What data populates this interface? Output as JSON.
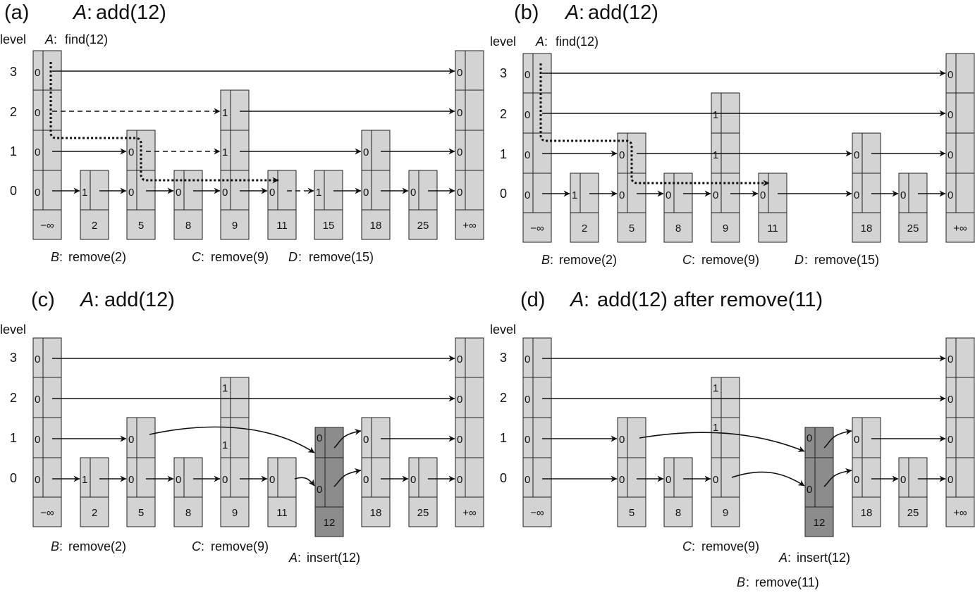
{
  "colors": {
    "node": "#d3d3d3",
    "inserted_node": "#8c8c8c",
    "stroke": "#222222"
  },
  "panels": [
    {
      "tag": "(a)",
      "title_op": "add(12)",
      "level_label": "level",
      "levels": [
        "0",
        "1",
        "2",
        "3"
      ],
      "find_label": "find(12)",
      "nodes": [
        {
          "key": "−∞",
          "height": 4,
          "marks": [
            "0",
            "0",
            "0",
            "0"
          ]
        },
        {
          "key": "2",
          "height": 1,
          "marks": [
            "1"
          ]
        },
        {
          "key": "5",
          "height": 2,
          "marks": [
            "0",
            "0"
          ]
        },
        {
          "key": "8",
          "height": 1,
          "marks": [
            "0"
          ]
        },
        {
          "key": "9",
          "height": 3,
          "marks": [
            "0",
            "1",
            "1"
          ]
        },
        {
          "key": "11",
          "height": 1,
          "marks": [
            "0"
          ]
        },
        {
          "key": "15",
          "height": 1,
          "marks": [
            "1"
          ]
        },
        {
          "key": "18",
          "height": 2,
          "marks": [
            "0",
            "0"
          ]
        },
        {
          "key": "25",
          "height": 1,
          "marks": [
            "0"
          ]
        },
        {
          "key": "+∞",
          "height": 4,
          "marks": [
            "0",
            "0",
            "0",
            "0"
          ]
        }
      ],
      "ops": [
        {
          "actor": "B",
          "text": "remove(2)"
        },
        {
          "actor": "C",
          "text": "remove(9)"
        },
        {
          "actor": "D",
          "text": "remove(15)"
        }
      ]
    },
    {
      "tag": "(b)",
      "title_op": "add(12)",
      "level_label": "level",
      "levels": [
        "0",
        "1",
        "2",
        "3"
      ],
      "find_label": "find(12)",
      "nodes": [
        {
          "key": "−∞",
          "height": 4,
          "marks": [
            "0",
            "0",
            "0",
            "0"
          ]
        },
        {
          "key": "2",
          "height": 1,
          "marks": [
            "1"
          ]
        },
        {
          "key": "5",
          "height": 2,
          "marks": [
            "0",
            "0"
          ]
        },
        {
          "key": "8",
          "height": 1,
          "marks": [
            "0"
          ]
        },
        {
          "key": "9",
          "height": 3,
          "marks": [
            "0",
            "1",
            "1"
          ]
        },
        {
          "key": "11",
          "height": 1,
          "marks": [
            "0"
          ]
        },
        {
          "key": "18",
          "height": 2,
          "marks": [
            "0",
            "0"
          ]
        },
        {
          "key": "25",
          "height": 1,
          "marks": [
            "0"
          ]
        },
        {
          "key": "+∞",
          "height": 4,
          "marks": [
            "0",
            "0",
            "0",
            "0"
          ]
        }
      ],
      "ops": [
        {
          "actor": "B",
          "text": "remove(2)"
        },
        {
          "actor": "C",
          "text": "remove(9)"
        },
        {
          "actor": "D",
          "text": "remove(15)"
        }
      ]
    },
    {
      "tag": "(c)",
      "title_op": "add(12)",
      "level_label": "level",
      "levels": [
        "0",
        "1",
        "2",
        "3"
      ],
      "nodes": [
        {
          "key": "−∞",
          "height": 4,
          "marks": [
            "0",
            "0",
            "0",
            "0"
          ]
        },
        {
          "key": "2",
          "height": 1,
          "marks": [
            "1"
          ]
        },
        {
          "key": "5",
          "height": 2,
          "marks": [
            "0",
            "0"
          ]
        },
        {
          "key": "8",
          "height": 1,
          "marks": [
            "0"
          ]
        },
        {
          "key": "9",
          "height": 3,
          "marks": [
            "0",
            "1",
            "1"
          ]
        },
        {
          "key": "11",
          "height": 1,
          "marks": [
            "0"
          ]
        },
        {
          "key": "12",
          "height": 2,
          "marks": [
            "0",
            "0"
          ],
          "inserted": true
        },
        {
          "key": "18",
          "height": 2,
          "marks": [
            "0",
            "0"
          ]
        },
        {
          "key": "25",
          "height": 1,
          "marks": [
            "0"
          ]
        },
        {
          "key": "+∞",
          "height": 4,
          "marks": [
            "0",
            "0",
            "0",
            "0"
          ]
        }
      ],
      "ops": [
        {
          "actor": "B",
          "text": "remove(2)"
        },
        {
          "actor": "C",
          "text": "remove(9)"
        },
        {
          "actor": "A",
          "text": "insert(12)"
        }
      ]
    },
    {
      "tag": "(d)",
      "title_op": "add(12) after remove(11)",
      "level_label": "level",
      "levels": [
        "0",
        "1",
        "2",
        "3"
      ],
      "nodes": [
        {
          "key": "−∞",
          "height": 4,
          "marks": [
            "0",
            "0",
            "0",
            "0"
          ]
        },
        {
          "key": "5",
          "height": 2,
          "marks": [
            "0",
            "0"
          ]
        },
        {
          "key": "8",
          "height": 1,
          "marks": [
            "0"
          ]
        },
        {
          "key": "9",
          "height": 3,
          "marks": [
            "0",
            "1",
            "1"
          ]
        },
        {
          "key": "12",
          "height": 2,
          "marks": [
            "0",
            "0"
          ],
          "inserted": true
        },
        {
          "key": "18",
          "height": 2,
          "marks": [
            "0",
            "0"
          ]
        },
        {
          "key": "25",
          "height": 1,
          "marks": [
            "0"
          ]
        },
        {
          "key": "+∞",
          "height": 4,
          "marks": [
            "0",
            "0",
            "0",
            "0"
          ]
        }
      ],
      "ops": [
        {
          "actor": "C",
          "text": "remove(9)"
        },
        {
          "actor": "A",
          "text": "insert(12)"
        },
        {
          "actor": "B",
          "text": "remove(11)"
        }
      ]
    }
  ]
}
